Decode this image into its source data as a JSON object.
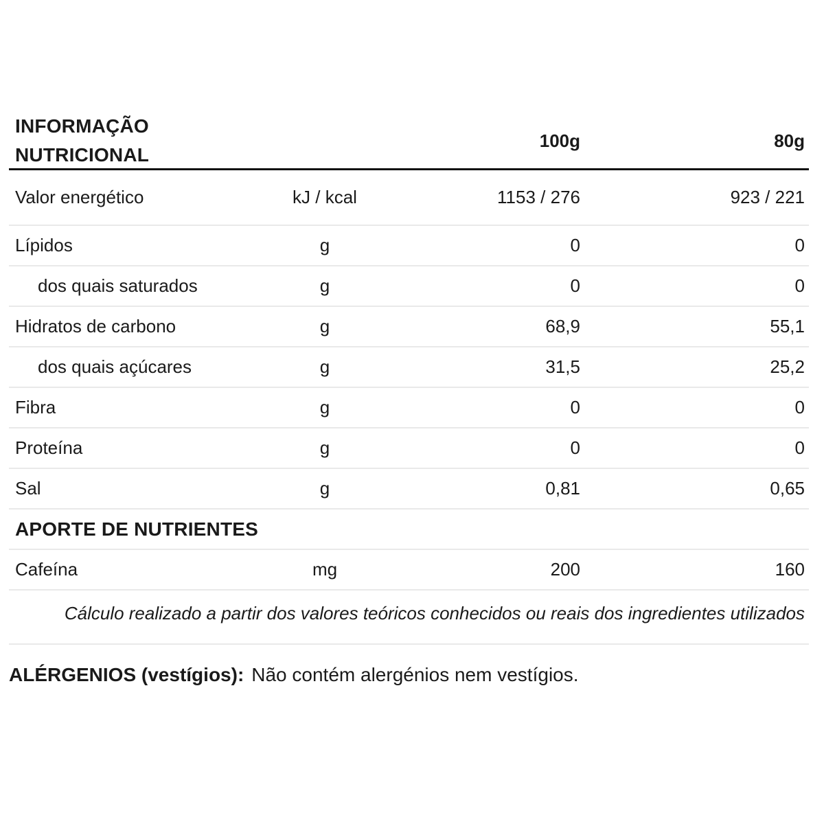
{
  "page": {
    "background": "#ffffff",
    "text_color": "#1a1a1a",
    "divider_color": "#e9e9e9",
    "header_rule_color": "#111111"
  },
  "table": {
    "title_line1": "INFORMAÇÃO",
    "title_line2": "NUTRICIONAL",
    "columns": {
      "per_100g": "100g",
      "per_80g": "80g"
    },
    "rows": [
      {
        "label": "Valor energético",
        "unit": "kJ / kcal",
        "per_100g": "1153 / 276",
        "per_80g": "923 / 221"
      },
      {
        "label": "Lípidos",
        "unit": "g",
        "per_100g": "0",
        "per_80g": "0"
      },
      {
        "label": "dos quais saturados",
        "unit": "g",
        "per_100g": "0",
        "per_80g": "0"
      },
      {
        "label": "Hidratos de carbono",
        "unit": "g",
        "per_100g": "68,9",
        "per_80g": "55,1"
      },
      {
        "label": "dos quais açúcares",
        "unit": "g",
        "per_100g": "31,5",
        "per_80g": "25,2"
      },
      {
        "label": "Fibra",
        "unit": "g",
        "per_100g": "0",
        "per_80g": "0"
      },
      {
        "label": "Proteína",
        "unit": "g",
        "per_100g": "0",
        "per_80g": "0"
      },
      {
        "label": "Sal",
        "unit": "g",
        "per_100g": "0,81",
        "per_80g": "0,65"
      }
    ],
    "section_header": "APORTE DE NUTRIENTES",
    "nutrients": [
      {
        "label": "Cafeína",
        "unit": "mg",
        "per_100g": "200",
        "per_80g": "160"
      }
    ],
    "footnote": "Cálculo realizado a partir dos valores teóricos conhecidos ou reais dos ingredientes utilizados"
  },
  "allergens": {
    "label_bold": "ALÉRGENIOS (vestígios):",
    "text": "Não contém alergénios nem vestígios."
  }
}
